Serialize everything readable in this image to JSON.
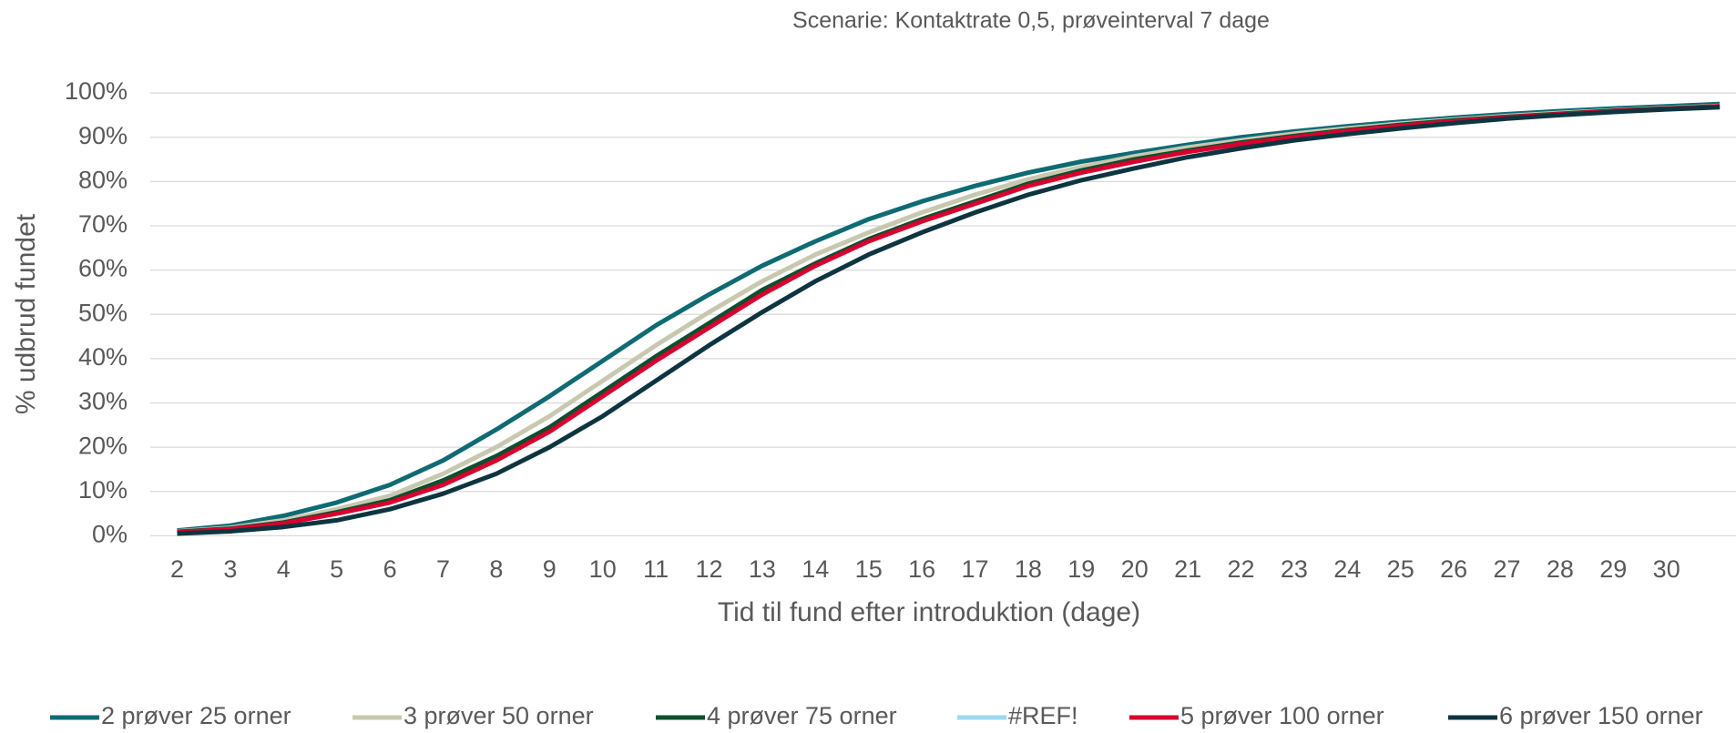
{
  "chart_data": {
    "type": "line",
    "title": "Scenarie: Kontaktrate 0,5, prøveinterval 7 dage",
    "x_label": "Tid til fund efter introduktion (dage)",
    "y_label": "% udbrud fundet",
    "categories": [
      "2",
      "3",
      "4",
      "5",
      "6",
      "7",
      "8",
      "9",
      "10",
      "11",
      "12",
      "13",
      "14",
      "15",
      "16",
      "17",
      "18",
      "19",
      "20",
      "21",
      "22",
      "23",
      "24",
      "25",
      "26",
      "27",
      "28",
      "29",
      "30",
      null
    ],
    "ylim": [
      0,
      100
    ],
    "yticks": [
      {
        "value": 0,
        "label": "0%"
      },
      {
        "value": 10,
        "label": "10%"
      },
      {
        "value": 20,
        "label": "20%"
      },
      {
        "value": 30,
        "label": "30%"
      },
      {
        "value": 40,
        "label": "40%"
      },
      {
        "value": 50,
        "label": "50%"
      },
      {
        "value": 60,
        "label": "60%"
      },
      {
        "value": 70,
        "label": "70%"
      },
      {
        "value": 80,
        "label": "80%"
      },
      {
        "value": 90,
        "label": "90%"
      },
      {
        "value": 100,
        "label": "100%"
      }
    ],
    "grid": true,
    "legend": "bottom",
    "series": [
      {
        "name": "2 prøver 25 orner",
        "color": "#0e6b73",
        "values": [
          1.2,
          2.3,
          4.5,
          7.5,
          11.5,
          17,
          24,
          31.5,
          39.5,
          47.5,
          54.5,
          61,
          66.5,
          71.5,
          75.5,
          79,
          82,
          84.5,
          86.5,
          88.3,
          90,
          91.3,
          92.5,
          93.5,
          94.4,
          95.2,
          95.9,
          96.5,
          97,
          97.5
        ]
      },
      {
        "name": "3 prøver 50 orner",
        "color": "#c8c8b0",
        "values": [
          1,
          1.8,
          3.5,
          6,
          9,
          14,
          20,
          27,
          35,
          43,
          50.5,
          57.5,
          63.5,
          68.5,
          73,
          77,
          80.5,
          83.3,
          85.7,
          87.7,
          89.3,
          90.8,
          92,
          93.1,
          94,
          94.8,
          95.5,
          96.1,
          96.6,
          97.1
        ]
      },
      {
        "name": "4 prøver 75 orner",
        "color": "#0b4f2e",
        "values": [
          0.9,
          1.6,
          3,
          5.3,
          8,
          12.5,
          18,
          24.5,
          32.5,
          40.5,
          48,
          55.5,
          61.5,
          67,
          71.5,
          75.5,
          79.5,
          82.5,
          85,
          87,
          88.8,
          90.3,
          91.6,
          92.8,
          93.8,
          94.6,
          95.3,
          96,
          96.5,
          97
        ]
      },
      {
        "name": "#REF!",
        "color": "#9ad9f2",
        "values": [
          null,
          null,
          null,
          null,
          null,
          null,
          null,
          null,
          null,
          null,
          null,
          null,
          null,
          null,
          null,
          null,
          null,
          null,
          null,
          null,
          null,
          null,
          null,
          null,
          null,
          null,
          null,
          null,
          null,
          null
        ]
      },
      {
        "name": "5 prøver 100 orner",
        "color": "#d7002f",
        "values": [
          0.8,
          1.5,
          2.8,
          5,
          7.5,
          11.5,
          17,
          23.5,
          31.5,
          39.5,
          47,
          54.5,
          61,
          66.5,
          71,
          75,
          79,
          82,
          84.5,
          86.7,
          88.5,
          90,
          91.4,
          92.6,
          93.6,
          94.5,
          95.2,
          95.9,
          96.4,
          97
        ]
      },
      {
        "name": "6 prøver 150 orner",
        "color": "#0d3540",
        "values": [
          0.5,
          1,
          2,
          3.5,
          6,
          9.5,
          14,
          20,
          27,
          35,
          43,
          50.5,
          57.5,
          63.5,
          68.5,
          73,
          77,
          80.3,
          83,
          85.5,
          87.5,
          89.3,
          90.7,
          92,
          93.2,
          94.2,
          95,
          95.7,
          96.3,
          96.8
        ]
      }
    ]
  }
}
